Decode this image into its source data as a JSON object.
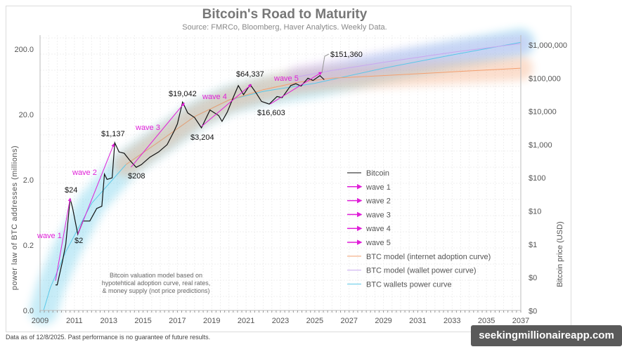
{
  "chart_data": {
    "type": "line",
    "title": "Bitcoin's Road to Maturity",
    "subtitle": "Source: FMRCo, Bloomberg, Haver Analytics. Weekly Data.",
    "ylabel_left": "power law of BTC addresses (millions)",
    "ylabel_right": "Bitcoin price (USD)",
    "x_ticks": [
      "2009",
      "2011",
      "2013",
      "2015",
      "2017",
      "2019",
      "2021",
      "2023",
      "2025",
      "2027",
      "2029",
      "2031",
      "2033",
      "2035",
      "2037"
    ],
    "xlim": [
      2009,
      2037
    ],
    "y_left_ticks": [
      "200.0",
      "20.0",
      "2.0",
      "0.2",
      "0.0"
    ],
    "y_right_ticks": [
      "$1,000,000",
      "$100,000",
      "$10,000",
      "$1,000",
      "$100",
      "$10",
      "$1",
      "$0",
      "$0"
    ],
    "y_right_scale": "log",
    "grid": true,
    "legend_placement": "center-right",
    "series": [
      {
        "name": "Bitcoin",
        "color": "#111111",
        "points": [
          [
            2009.9,
            0.06
          ],
          [
            2010.0,
            0.06
          ],
          [
            2010.3,
            0.3
          ],
          [
            2010.5,
            1
          ],
          [
            2010.75,
            24
          ],
          [
            2010.9,
            12
          ],
          [
            2011.2,
            2
          ],
          [
            2011.5,
            5
          ],
          [
            2011.9,
            5
          ],
          [
            2012.3,
            12
          ],
          [
            2012.6,
            14
          ],
          [
            2012.75,
            130
          ],
          [
            2012.9,
            90
          ],
          [
            2013.2,
            100
          ],
          [
            2013.35,
            1137
          ],
          [
            2013.6,
            600
          ],
          [
            2013.9,
            550
          ],
          [
            2014.2,
            350
          ],
          [
            2014.6,
            208
          ],
          [
            2014.9,
            250
          ],
          [
            2015.4,
            420
          ],
          [
            2015.9,
            600
          ],
          [
            2016.4,
            1000
          ],
          [
            2016.8,
            2500
          ],
          [
            2017.0,
            4200
          ],
          [
            2017.3,
            19042
          ],
          [
            2017.6,
            9000
          ],
          [
            2018.0,
            6500
          ],
          [
            2018.4,
            3204
          ],
          [
            2018.9,
            11000
          ],
          [
            2019.4,
            7500
          ],
          [
            2019.6,
            5000
          ],
          [
            2019.9,
            9500
          ],
          [
            2020.3,
            30000
          ],
          [
            2020.55,
            60000
          ],
          [
            2020.85,
            32000
          ],
          [
            2021.24,
            64337
          ],
          [
            2021.6,
            35000
          ],
          [
            2021.9,
            20000
          ],
          [
            2022.35,
            16603
          ],
          [
            2022.8,
            28000
          ],
          [
            2023.1,
            26000
          ],
          [
            2023.6,
            60000
          ],
          [
            2023.9,
            68000
          ],
          [
            2024.2,
            58000
          ],
          [
            2024.6,
            100000
          ],
          [
            2024.9,
            85000
          ],
          [
            2025.3,
            120000
          ],
          [
            2025.55,
            90000
          ]
        ]
      },
      {
        "name": "BTC model (internet adoption curve)",
        "color": "#f4a070",
        "points": [
          [
            2014,
            250
          ],
          [
            2016,
            1300
          ],
          [
            2018,
            7000
          ],
          [
            2020,
            22000
          ],
          [
            2022,
            45000
          ],
          [
            2024,
            75000
          ],
          [
            2026,
            100000
          ],
          [
            2029,
            120000
          ],
          [
            2033,
            155000
          ],
          [
            2037,
            200000
          ]
        ]
      },
      {
        "name": "BTC model (wallet power curve)",
        "color": "#c9a8f0",
        "points": [
          [
            2024,
            110000
          ],
          [
            2026,
            170000
          ],
          [
            2029,
            300000
          ],
          [
            2033,
            600000
          ],
          [
            2037,
            1100000
          ]
        ]
      },
      {
        "name": "BTC wallets power curve",
        "color": "#5bc8e8",
        "points": [
          [
            2009.2,
            0.01
          ],
          [
            2009.6,
            0.05
          ],
          [
            2010.5,
            0.6
          ],
          [
            2012,
            17
          ],
          [
            2014,
            250
          ],
          [
            2016,
            1300
          ],
          [
            2018,
            7000
          ],
          [
            2020,
            22000
          ],
          [
            2022,
            40000
          ],
          [
            2025,
            70000
          ],
          [
            2029,
            200000
          ],
          [
            2033,
            500000
          ],
          [
            2037,
            1200000
          ]
        ]
      }
    ],
    "waves": [
      {
        "name": "wave 1",
        "from": [
          2009.9,
          0.08
        ],
        "to": [
          2010.75,
          24
        ]
      },
      {
        "name": "wave 2",
        "from": [
          2011.2,
          2
        ],
        "to": [
          2013.3,
          1050
        ]
      },
      {
        "name": "wave 3",
        "from": [
          2014.3,
          210
        ],
        "to": [
          2017.4,
          17800
        ]
      },
      {
        "name": "wave 4",
        "from": [
          2018.4,
          3500
        ],
        "to": [
          2021.3,
          64337
        ]
      },
      {
        "name": "wave 5",
        "from": [
          2022.4,
          16603
        ],
        "to": [
          2025.4,
          150000
        ]
      }
    ],
    "wave_color": "#e020d8",
    "annotations": [
      "$24",
      "$2",
      "$1,137",
      "$208",
      "$19,042",
      "$3,204",
      "$64,337",
      "$16,603",
      "$151,360"
    ],
    "note": [
      "Bitcoin valuation model based on",
      "hypotehtical adoption curve, real rates,",
      "& money supply  (not price predictions)"
    ],
    "legend": [
      "Bitcoin",
      "wave 1",
      "wave 2",
      "wave 3",
      "wave 4",
      "wave 5",
      "BTC model (internet adoption curve)",
      "BTC model (wallet power curve)",
      "BTC wallets power curve"
    ]
  },
  "footer": "Data as of 12/8/2025. Past performance is no guarantee of future results.",
  "watermark": "seekingmillionaireapp.com"
}
